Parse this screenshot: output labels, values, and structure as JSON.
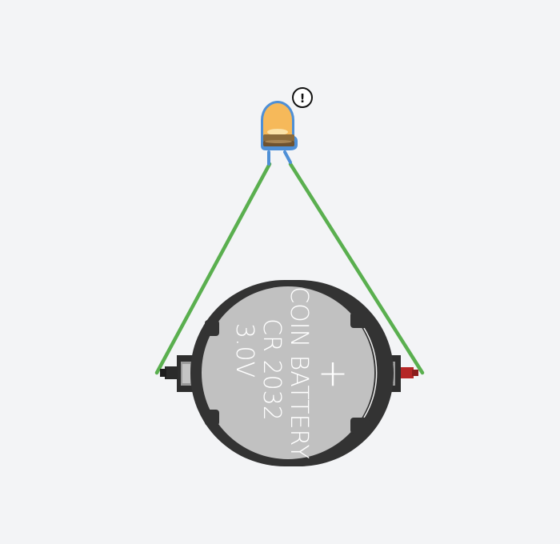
{
  "circuit": {
    "led": {
      "color": "#f6b95a",
      "selected": true,
      "selection_color": "#4e8fd6",
      "warning": {
        "symbol": "!",
        "icon": "warning-icon"
      }
    },
    "battery": {
      "label_line1": "COIN BATTERY",
      "label_line2": "CR 2032",
      "label_line3": "3.0V",
      "plus_symbol": "+",
      "negative_terminal_color": "#2b2b2b",
      "positive_terminal_color": "#c22a2a"
    },
    "wires": {
      "color": "#5aaf4f",
      "count": 2
    }
  }
}
